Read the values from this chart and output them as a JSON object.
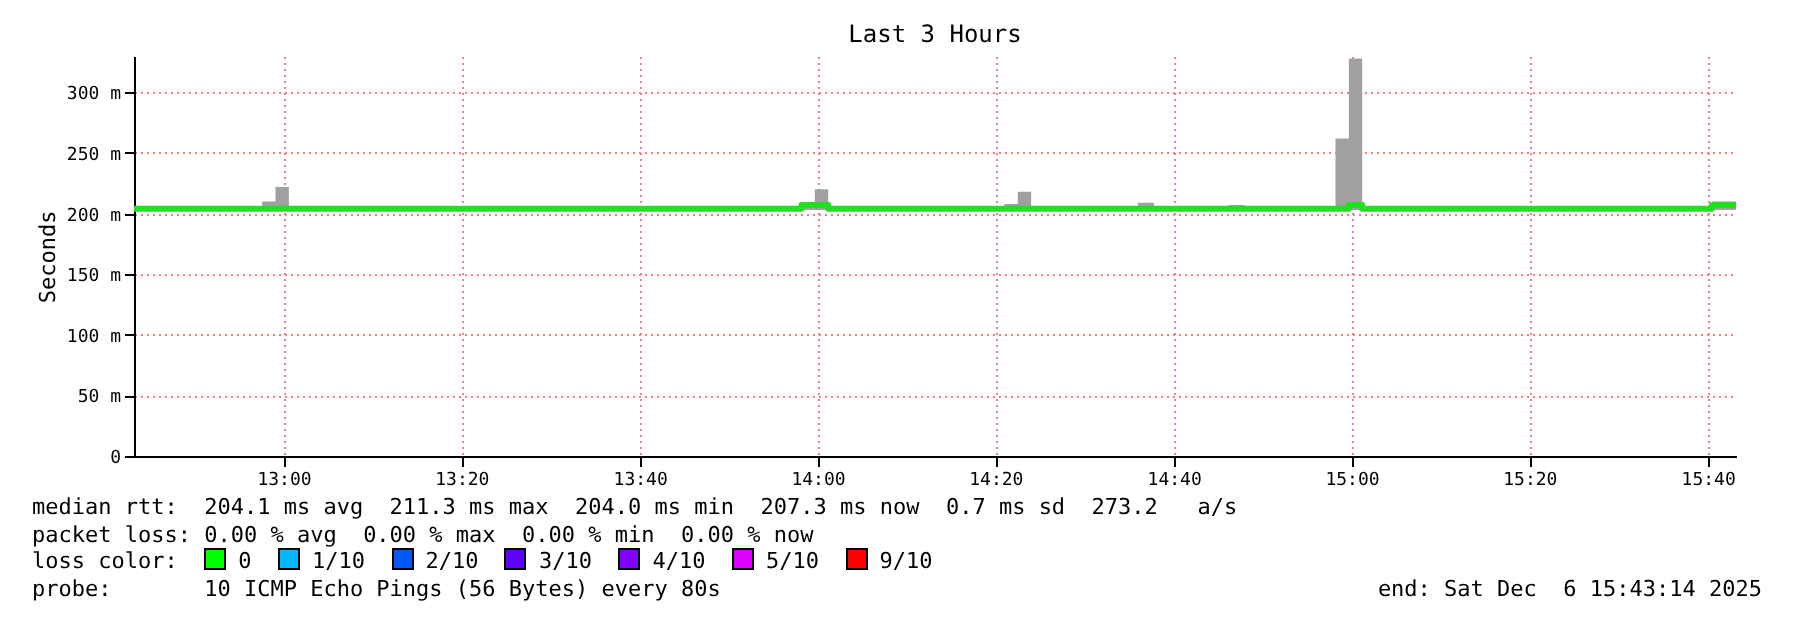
{
  "chart_data": {
    "type": "step",
    "title": "Last 3 Hours",
    "ylabel": "Seconds",
    "x": [
      12.72,
      12.96,
      12.985,
      13.01,
      13.97,
      13.995,
      14.02,
      14.35,
      14.375,
      14.4,
      14.5,
      14.53,
      14.6,
      14.63,
      14.77,
      14.8,
      14.97,
      14.995,
      15.02,
      15.675,
      15.72
    ],
    "series": [
      {
        "color": "#20e020",
        "values": [
          204,
          204,
          204,
          204,
          207,
          207,
          204,
          204,
          204,
          204,
          204,
          204,
          204,
          204,
          204,
          204,
          204,
          207,
          204,
          207,
          207
        ],
        "lower": [
          203,
          203,
          203,
          203,
          203,
          203,
          203,
          203,
          203,
          203,
          203,
          203,
          203,
          203,
          203,
          203,
          203,
          203,
          203,
          203,
          203
        ],
        "upper": [
          205,
          210,
          222,
          205,
          209,
          220,
          205,
          208,
          218,
          205,
          206,
          205,
          209,
          205,
          207,
          205,
          262,
          328,
          205,
          210,
          210
        ]
      }
    ],
    "xlim": [
      12.72,
      15.72
    ],
    "xticks": [
      {
        "value": 13,
        "label": "13:00"
      },
      {
        "value": 13.333,
        "label": "13:20"
      },
      {
        "value": 13.667,
        "label": "13:40"
      },
      {
        "value": 14,
        "label": "14:00"
      },
      {
        "value": 14.333,
        "label": "14:20"
      },
      {
        "value": 14.667,
        "label": "14:40"
      },
      {
        "value": 15,
        "label": "15:00"
      },
      {
        "value": 15.333,
        "label": "15:20"
      },
      {
        "value": 15.667,
        "label": "15:40"
      }
    ],
    "ylim": [
      0,
      330
    ],
    "yticks": [
      0,
      {
        "value": 50,
        "label": "50 m"
      },
      {
        "value": 100,
        "label": "100 m"
      },
      {
        "value": 150,
        "label": "150 m"
      },
      {
        "value": 200,
        "label": "200 m"
      },
      {
        "value": 250,
        "label": "250 m"
      },
      {
        "value": 300,
        "label": "300 m"
      }
    ],
    "grid": true,
    "annotations": [
      "median rtt:  204.1 ms avg  211.3 ms max  204.0 ms min  207.3 ms now  0.7 ms sd  273.2   a/s",
      "packet loss: 0.00 % avg  0.00 % max  0.00 % min  0.00 % now",
      "loss color:  0  1/10  2/10  3/10  4/10  5/10  9/10",
      "probe:       10 ICMP Echo Pings (56 Bytes) every 80s",
      "end: Sat Dec  6 15:43:14 2025"
    ]
  }
}
